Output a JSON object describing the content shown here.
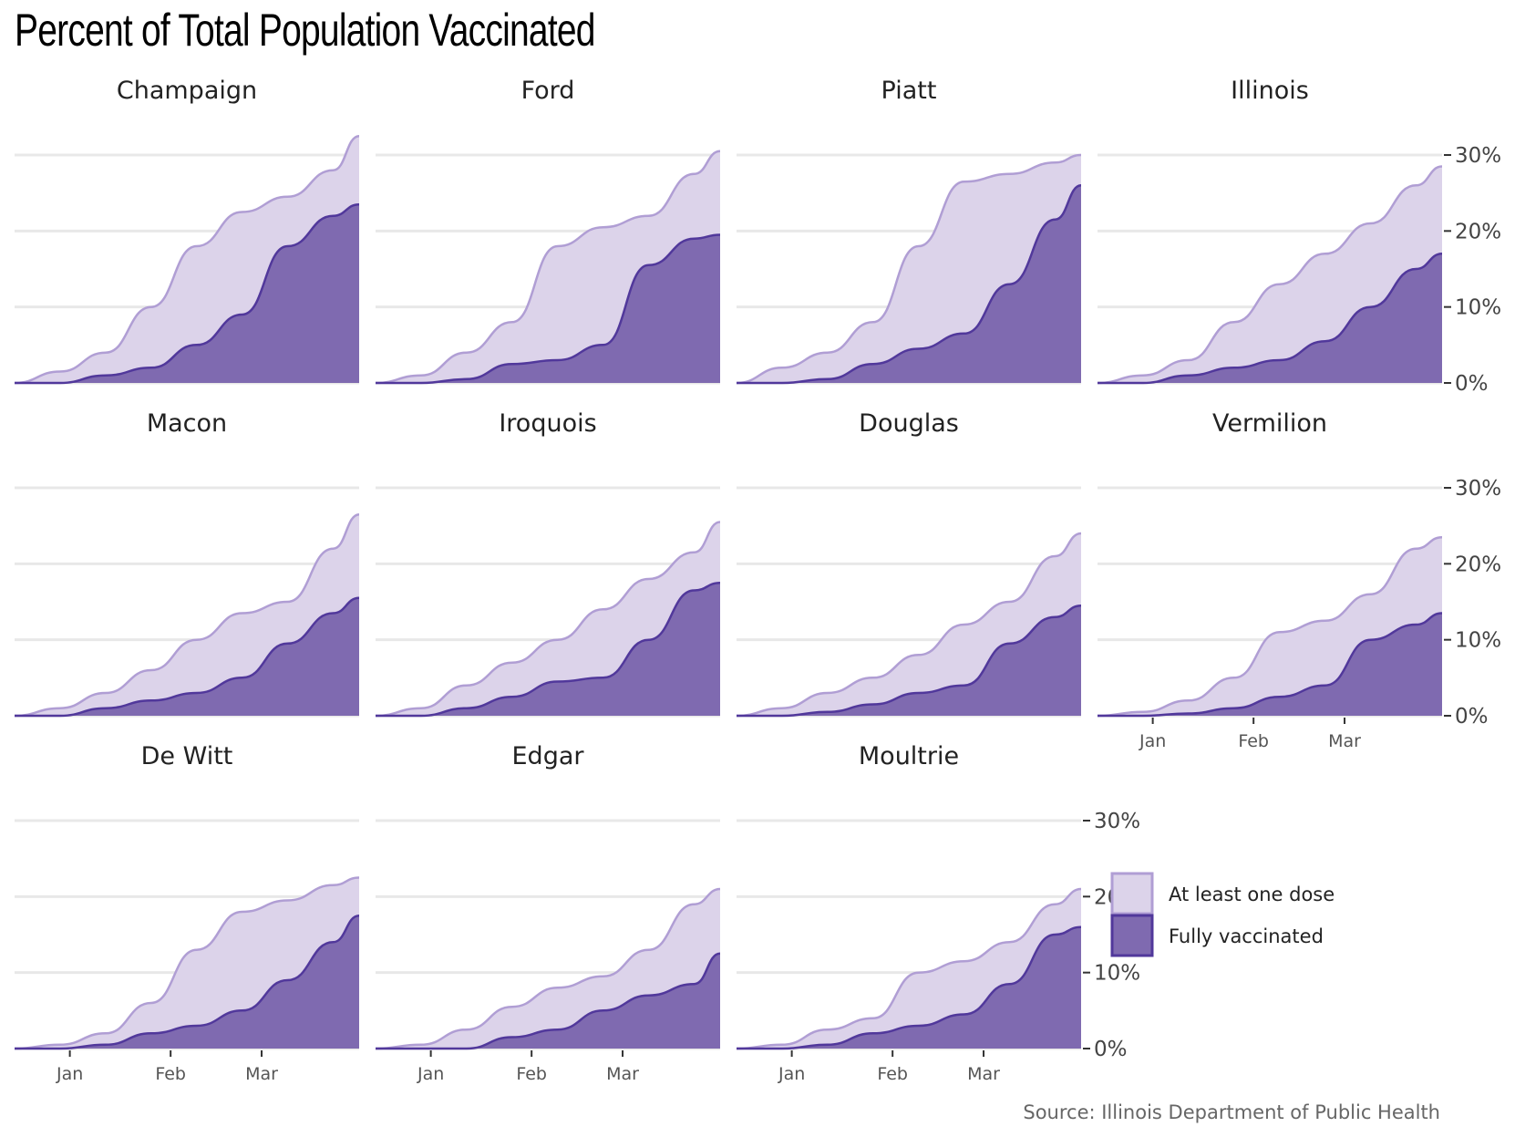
{
  "title": "Percent of Total Population Vaccinated",
  "source": "Source: Illinois Department of Public Health",
  "colors": {
    "at_least_one_fill": "#dcd3ea",
    "at_least_one_line": "#b09ed4",
    "fully_fill": "#7f6ab0",
    "fully_line": "#51389b",
    "grid": "#e8e8e8"
  },
  "chart_data": {
    "type": "area",
    "xlabel": "",
    "ylabel": "",
    "ylim": [
      0,
      30
    ],
    "y_ticks": [
      "0%",
      "10%",
      "20%",
      "30%"
    ],
    "x_ticks": [
      "Jan",
      "Feb",
      "Mar"
    ],
    "x_tick_dates": [
      "2021-01-01",
      "2021-02-01",
      "2021-03-01"
    ],
    "x_range": [
      "2020-12-15",
      "2021-03-31"
    ],
    "layout": "facet grid, 4 columns; y-axis on right of last panel in each row",
    "grid": "horizontal major gridlines",
    "legend": {
      "position": "bottom-right",
      "entries": [
        "At least one dose",
        "Fully vaccinated"
      ]
    },
    "dates": [
      "2020-12-15",
      "2020-12-29",
      "2021-01-12",
      "2021-01-26",
      "2021-02-09",
      "2021-02-23",
      "2021-03-09",
      "2021-03-23",
      "2021-03-31"
    ],
    "facets": [
      {
        "name": "Champaign",
        "at_least_one_dose": [
          0.0,
          1.5,
          4.0,
          10.0,
          18.0,
          22.5,
          24.5,
          28.0,
          32.5
        ],
        "fully_vaccinated": [
          0.0,
          0.0,
          1.0,
          2.0,
          5.0,
          9.0,
          18.0,
          22.0,
          23.5
        ]
      },
      {
        "name": "Ford",
        "at_least_one_dose": [
          0.0,
          1.0,
          4.0,
          8.0,
          18.0,
          20.5,
          22.0,
          27.5,
          30.5
        ],
        "fully_vaccinated": [
          0.0,
          0.0,
          0.5,
          2.5,
          3.0,
          5.0,
          15.5,
          19.0,
          19.5
        ]
      },
      {
        "name": "Piatt",
        "at_least_one_dose": [
          0.0,
          2.0,
          4.0,
          8.0,
          18.0,
          26.5,
          27.5,
          29.0,
          30.0
        ],
        "fully_vaccinated": [
          0.0,
          0.0,
          0.5,
          2.5,
          4.5,
          6.5,
          13.0,
          21.5,
          26.0
        ]
      },
      {
        "name": "Illinois",
        "at_least_one_dose": [
          0.0,
          1.0,
          3.0,
          8.0,
          13.0,
          17.0,
          21.0,
          26.0,
          28.5
        ],
        "fully_vaccinated": [
          0.0,
          0.0,
          1.0,
          2.0,
          3.0,
          5.5,
          10.0,
          15.0,
          17.0
        ]
      },
      {
        "name": "Macon",
        "at_least_one_dose": [
          0.0,
          1.0,
          3.0,
          6.0,
          10.0,
          13.5,
          15.0,
          22.0,
          26.5
        ],
        "fully_vaccinated": [
          0.0,
          0.0,
          1.0,
          2.0,
          3.0,
          5.0,
          9.5,
          13.5,
          15.5
        ]
      },
      {
        "name": "Iroquois",
        "at_least_one_dose": [
          0.0,
          1.0,
          4.0,
          7.0,
          10.0,
          14.0,
          18.0,
          21.5,
          25.5
        ],
        "fully_vaccinated": [
          0.0,
          0.0,
          1.0,
          2.5,
          4.5,
          5.0,
          10.0,
          16.5,
          17.5
        ]
      },
      {
        "name": "Douglas",
        "at_least_one_dose": [
          0.0,
          1.0,
          3.0,
          5.0,
          8.0,
          12.0,
          15.0,
          21.0,
          24.0
        ],
        "fully_vaccinated": [
          0.0,
          0.0,
          0.5,
          1.5,
          3.0,
          4.0,
          9.5,
          13.0,
          14.5
        ]
      },
      {
        "name": "Vermilion",
        "at_least_one_dose": [
          0.0,
          0.5,
          2.0,
          5.0,
          11.0,
          12.5,
          16.0,
          22.0,
          23.5
        ],
        "fully_vaccinated": [
          0.0,
          0.0,
          0.3,
          1.0,
          2.5,
          4.0,
          10.0,
          12.0,
          13.5
        ]
      },
      {
        "name": "De Witt",
        "at_least_one_dose": [
          0.0,
          0.5,
          2.0,
          6.0,
          13.0,
          18.0,
          19.5,
          21.5,
          22.5
        ],
        "fully_vaccinated": [
          0.0,
          0.0,
          0.5,
          2.0,
          3.0,
          5.0,
          9.0,
          14.0,
          17.5
        ]
      },
      {
        "name": "Edgar",
        "at_least_one_dose": [
          0.0,
          0.5,
          2.5,
          5.5,
          8.0,
          9.5,
          13.0,
          19.0,
          21.0
        ],
        "fully_vaccinated": [
          0.0,
          0.0,
          0.0,
          1.5,
          2.5,
          5.0,
          7.0,
          8.5,
          12.5
        ]
      },
      {
        "name": "Moultrie",
        "at_least_one_dose": [
          0.0,
          0.5,
          2.5,
          4.0,
          10.0,
          11.5,
          14.0,
          19.0,
          21.0
        ],
        "fully_vaccinated": [
          0.0,
          0.0,
          0.5,
          2.0,
          3.0,
          4.5,
          8.5,
          15.0,
          16.0
        ]
      }
    ]
  }
}
